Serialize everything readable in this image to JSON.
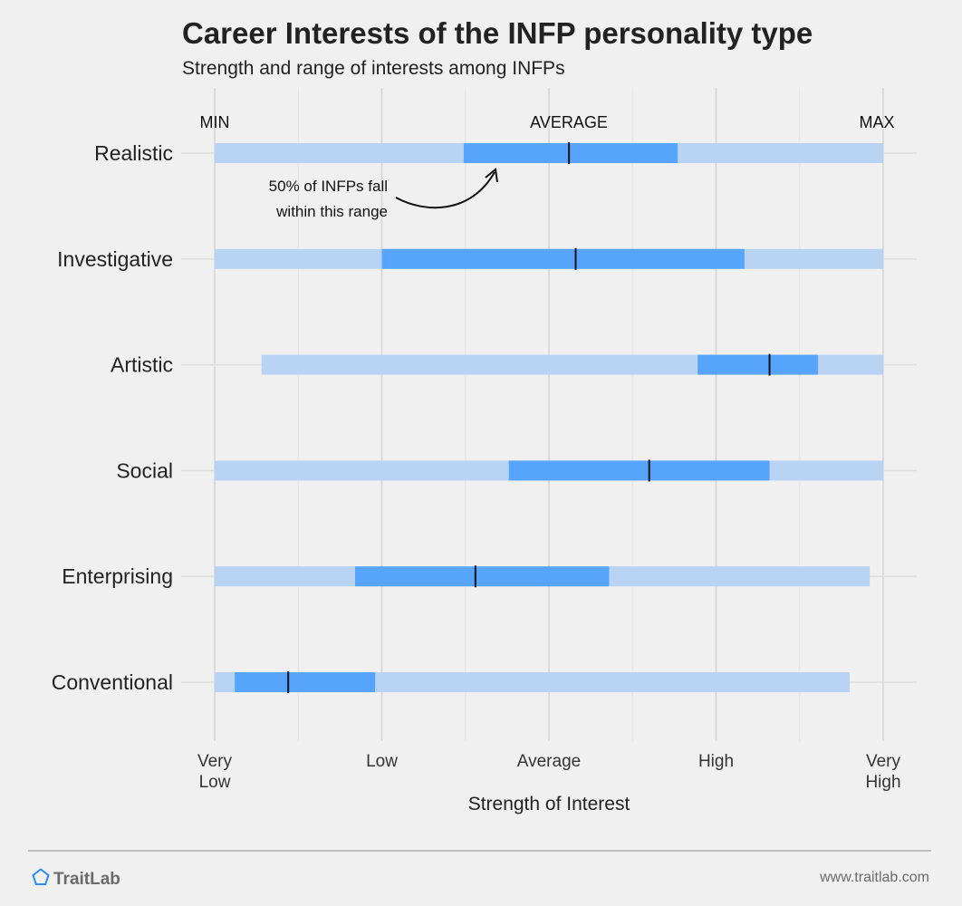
{
  "header": {
    "title": "Career Interests of the INFP personality type",
    "subtitle": "Strength and range of interests among INFPs"
  },
  "annotations": {
    "min_label": "MIN",
    "average_label": "AVERAGE",
    "max_label": "MAX",
    "note_line1": "50% of INFPs fall",
    "note_line2": "within this range"
  },
  "footer": {
    "brand": "TraitLab",
    "website": "www.traitlab.com"
  },
  "colors": {
    "range_light": "#b9d3f5",
    "range_iqr": "#57a4fc",
    "median": "#111111",
    "grid": "#d9d9d9"
  },
  "icons": {
    "logo": "pentagon-icon"
  },
  "chart_data": {
    "type": "range-bar",
    "xlabel": "Strength of Interest",
    "xlim": [
      0,
      4
    ],
    "x_ticks": [
      {
        "value": 0,
        "line1": "Very",
        "line2": "Low"
      },
      {
        "value": 1,
        "line1": "Low",
        "line2": ""
      },
      {
        "value": 2,
        "line1": "Average",
        "line2": ""
      },
      {
        "value": 3,
        "line1": "High",
        "line2": ""
      },
      {
        "value": 4,
        "line1": "Very",
        "line2": "High"
      }
    ],
    "grid": true,
    "categories": [
      "Realistic",
      "Investigative",
      "Artistic",
      "Social",
      "Enterprising",
      "Conventional"
    ],
    "series": [
      {
        "category": "Realistic",
        "min": 0.0,
        "q1": 1.49,
        "median": 2.12,
        "q3": 2.77,
        "max": 4.0
      },
      {
        "category": "Investigative",
        "min": 0.0,
        "q1": 1.0,
        "median": 2.16,
        "q3": 3.17,
        "max": 4.0
      },
      {
        "category": "Artistic",
        "min": 0.28,
        "q1": 2.89,
        "median": 3.32,
        "q3": 3.61,
        "max": 4.0
      },
      {
        "category": "Social",
        "min": 0.0,
        "q1": 1.76,
        "median": 2.6,
        "q3": 3.32,
        "max": 4.0
      },
      {
        "category": "Enterprising",
        "min": 0.0,
        "q1": 0.84,
        "median": 1.56,
        "q3": 2.36,
        "max": 3.92
      },
      {
        "category": "Conventional",
        "min": 0.0,
        "q1": 0.12,
        "median": 0.44,
        "q3": 0.96,
        "max": 3.8
      }
    ]
  }
}
